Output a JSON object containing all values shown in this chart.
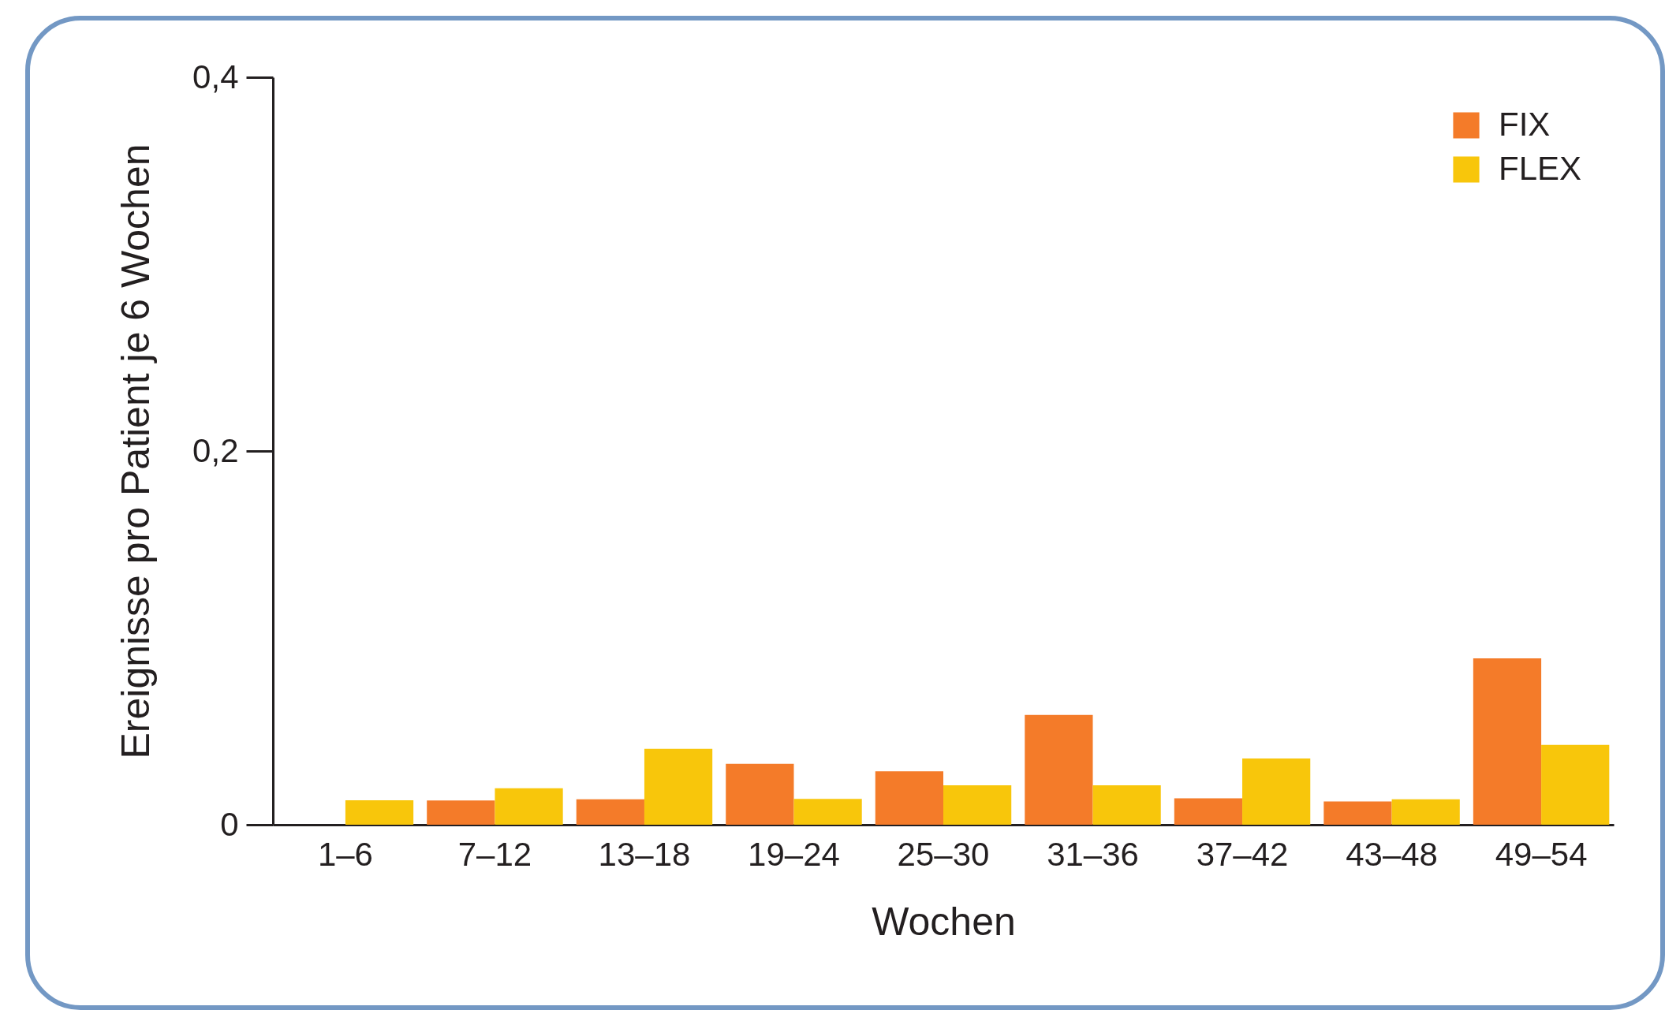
{
  "chart_data": {
    "type": "bar",
    "xlabel": "Wochen",
    "ylabel": "Ereignisse pro Patient je 6 Wochen",
    "categories": [
      "1–6",
      "7–12",
      "13–18",
      "19–24",
      "25–30",
      "31–36",
      "37–42",
      "43–48",
      "49–54"
    ],
    "series": [
      {
        "name": "FIX",
        "color": "#f47b29",
        "values": [
          0,
          0.013,
          0.0136,
          0.0326,
          0.0286,
          0.0588,
          0.0141,
          0.0124,
          0.089
        ]
      },
      {
        "name": "FLEX",
        "color": "#f8c60b",
        "values": [
          0.0131,
          0.0195,
          0.0406,
          0.0138,
          0.0211,
          0.0211,
          0.0354,
          0.0136,
          0.0427
        ]
      }
    ],
    "ylim": [
      0,
      0.4
    ],
    "yticks": [
      0,
      {
        "value": 0.2,
        "label": "0,2"
      },
      {
        "value": 0.4,
        "label": "0,4"
      }
    ],
    "grid": false,
    "legend": "top right"
  }
}
